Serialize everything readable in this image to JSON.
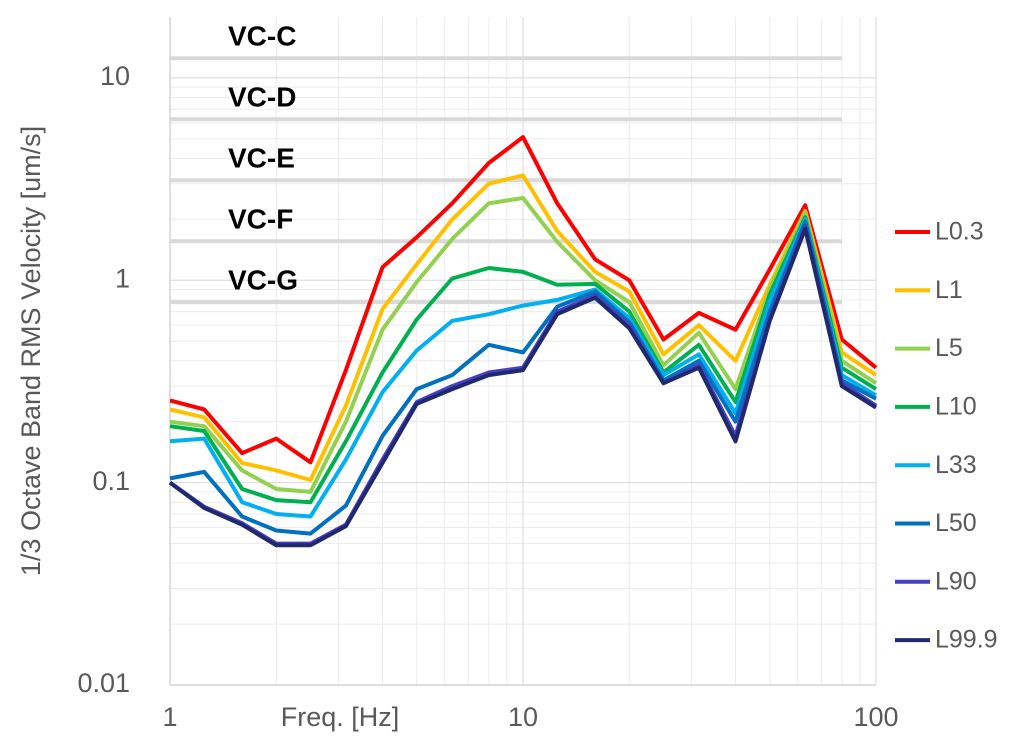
{
  "chart_data": {
    "type": "line",
    "x_label": "Freq. [Hz]",
    "y_label": "1/3 Octave Band RMS Velocity [um/s]",
    "log_x": true,
    "log_y": true,
    "grid": true,
    "minor_grid": true,
    "legend": "right",
    "xlim": [
      1,
      100
    ],
    "xticks": [
      1,
      10,
      100
    ],
    "ylim": [
      0.01,
      20
    ],
    "yticks": [
      0.01,
      0.1,
      1,
      10
    ],
    "x": [
      1,
      1.25,
      1.6,
      2,
      2.5,
      3.15,
      4,
      5,
      6.3,
      8,
      10,
      12.5,
      16,
      20,
      25,
      31.5,
      40,
      50,
      63,
      80,
      100
    ],
    "reference_lines": [
      {
        "label": "VC-C",
        "value": 12.5,
        "x_range": [
          1,
          80
        ]
      },
      {
        "label": "VC-D",
        "value": 6.25,
        "x_range": [
          1,
          80
        ]
      },
      {
        "label": "VC-E",
        "value": 3.12,
        "x_range": [
          1,
          80
        ]
      },
      {
        "label": "VC-F",
        "value": 1.56,
        "x_range": [
          1,
          80
        ]
      },
      {
        "label": "VC-G",
        "value": 0.78,
        "x_range": [
          1,
          80
        ]
      }
    ],
    "reference_color": "#d9d9d9",
    "series": [
      {
        "name": "L0.3",
        "color": "#ff0000",
        "values": [
          0.255,
          0.23,
          0.14,
          0.165,
          0.126,
          0.36,
          1.16,
          1.63,
          2.4,
          3.8,
          5.1,
          2.4,
          1.27,
          1.0,
          0.51,
          0.69,
          0.57,
          1.13,
          2.35,
          0.51,
          0.37
        ]
      },
      {
        "name": "L1",
        "color": "#ffc000",
        "values": [
          0.23,
          0.21,
          0.125,
          0.115,
          0.103,
          0.24,
          0.72,
          1.2,
          2.0,
          3.0,
          3.3,
          1.75,
          1.1,
          0.88,
          0.43,
          0.6,
          0.4,
          0.95,
          2.2,
          0.44,
          0.34
        ]
      },
      {
        "name": "L5",
        "color": "#92d050",
        "values": [
          0.2,
          0.19,
          0.115,
          0.093,
          0.09,
          0.2,
          0.57,
          0.98,
          1.6,
          2.4,
          2.55,
          1.55,
          1.0,
          0.78,
          0.38,
          0.55,
          0.29,
          0.9,
          2.15,
          0.4,
          0.31
        ]
      },
      {
        "name": "L10",
        "color": "#00b050",
        "values": [
          0.19,
          0.18,
          0.093,
          0.082,
          0.08,
          0.16,
          0.35,
          0.64,
          1.02,
          1.15,
          1.1,
          0.95,
          0.96,
          0.7,
          0.35,
          0.48,
          0.25,
          0.85,
          2.05,
          0.37,
          0.29
        ]
      },
      {
        "name": "L33",
        "color": "#00b0f0",
        "values": [
          0.16,
          0.165,
          0.08,
          0.07,
          0.068,
          0.13,
          0.28,
          0.45,
          0.63,
          0.68,
          0.75,
          0.8,
          0.9,
          0.65,
          0.34,
          0.43,
          0.22,
          0.78,
          2.0,
          0.34,
          0.27
        ]
      },
      {
        "name": "L50",
        "color": "#0070c0",
        "values": [
          0.105,
          0.113,
          0.068,
          0.058,
          0.056,
          0.077,
          0.17,
          0.29,
          0.34,
          0.48,
          0.44,
          0.74,
          0.88,
          0.62,
          0.32,
          0.4,
          0.2,
          0.7,
          1.95,
          0.32,
          0.26
        ]
      },
      {
        "name": "L90",
        "color": "#4a3fc4",
        "values": [
          0.1,
          0.076,
          0.063,
          0.05,
          0.05,
          0.062,
          0.13,
          0.25,
          0.3,
          0.35,
          0.37,
          0.7,
          0.84,
          0.6,
          0.31,
          0.38,
          0.17,
          0.65,
          1.85,
          0.31,
          0.24
        ]
      },
      {
        "name": "L99.9",
        "color": "#1f2a6e",
        "values": [
          0.1,
          0.075,
          0.062,
          0.049,
          0.049,
          0.061,
          0.125,
          0.245,
          0.29,
          0.34,
          0.36,
          0.68,
          0.82,
          0.58,
          0.31,
          0.37,
          0.16,
          0.63,
          1.8,
          0.3,
          0.235
        ]
      }
    ]
  }
}
